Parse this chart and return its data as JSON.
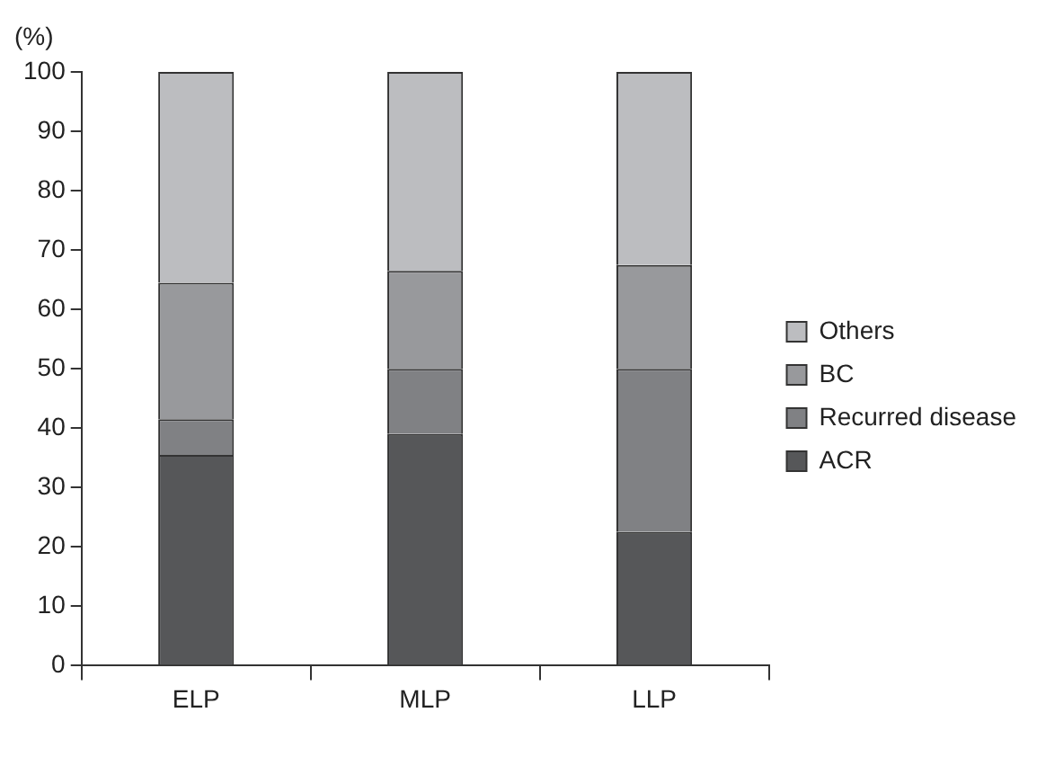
{
  "chart_data": {
    "type": "bar",
    "stacked": true,
    "ylabel": "(%)",
    "categories": [
      "ELP",
      "MLP",
      "LLP"
    ],
    "series": [
      {
        "name": "ACR",
        "color": "#565759",
        "values": [
          35.5,
          39,
          22.5
        ]
      },
      {
        "name": "Recurred disease",
        "color": "#808184",
        "values": [
          6,
          11,
          27.5
        ]
      },
      {
        "name": "BC",
        "color": "#98999c",
        "values": [
          23,
          16.5,
          17.5
        ]
      },
      {
        "name": "Others",
        "color": "#bcbdc0",
        "values": [
          35.5,
          33.5,
          32.5
        ]
      }
    ],
    "ylim": [
      0,
      100
    ],
    "yticks": [
      0,
      10,
      20,
      30,
      40,
      50,
      60,
      70,
      80,
      90,
      100
    ],
    "grid": false,
    "legend": "right"
  }
}
